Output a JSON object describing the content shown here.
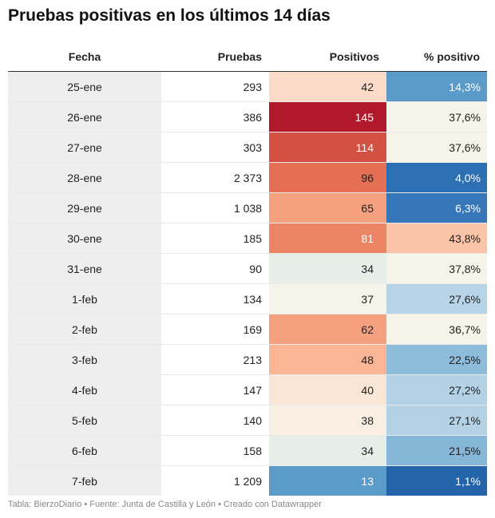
{
  "title": "Pruebas positivas en los últimos 14 días",
  "footer": "Tabla: BierzoDiario • Fuente: Junta de Castilla y León • Creado con Datawrapper",
  "chart_data": {
    "type": "table",
    "columns": [
      "Fecha",
      "Pruebas",
      "Positivos",
      "% positivo"
    ],
    "rows": [
      {
        "fecha": "25-ene",
        "pruebas": "293",
        "positivos": "42",
        "pct": "14,3%",
        "pos_bg": "#fcdcc9",
        "pos_fg": "#222222",
        "pct_bg": "#5a9bc9",
        "pct_fg": "#ffffff"
      },
      {
        "fecha": "26-ene",
        "pruebas": "386",
        "positivos": "145",
        "pct": "37,6%",
        "pos_bg": "#b2182b",
        "pos_fg": "#ffffff",
        "pct_bg": "#f6f3e8",
        "pct_fg": "#222222"
      },
      {
        "fecha": "27-ene",
        "pruebas": "303",
        "positivos": "114",
        "pct": "37,6%",
        "pos_bg": "#d35142",
        "pos_fg": "#ffffff",
        "pct_bg": "#f6f3e8",
        "pct_fg": "#222222"
      },
      {
        "fecha": "28-ene",
        "pruebas": "2 373",
        "positivos": "96",
        "pct": "4,0%",
        "pos_bg": "#e46f53",
        "pos_fg": "#222222",
        "pct_bg": "#2c6fb2",
        "pct_fg": "#ffffff"
      },
      {
        "fecha": "29-ene",
        "pruebas": "1 038",
        "positivos": "65",
        "pct": "6,3%",
        "pos_bg": "#f5a07e",
        "pos_fg": "#222222",
        "pct_bg": "#3577b8",
        "pct_fg": "#ffffff"
      },
      {
        "fecha": "30-ene",
        "pruebas": "185",
        "positivos": "81",
        "pct": "43,8%",
        "pos_bg": "#ec8563",
        "pos_fg": "#ffffff",
        "pct_bg": "#fbc4a8",
        "pct_fg": "#222222"
      },
      {
        "fecha": "31-ene",
        "pruebas": "90",
        "positivos": "34",
        "pct": "37,8%",
        "pos_bg": "#e6eeea",
        "pos_fg": "#222222",
        "pct_bg": "#f6f3e8",
        "pct_fg": "#222222"
      },
      {
        "fecha": "1-feb",
        "pruebas": "134",
        "positivos": "37",
        "pct": "27,6%",
        "pos_bg": "#f6f3e8",
        "pos_fg": "#222222",
        "pct_bg": "#b8d5e8",
        "pct_fg": "#222222"
      },
      {
        "fecha": "2-feb",
        "pruebas": "169",
        "positivos": "62",
        "pct": "36,7%",
        "pos_bg": "#f5a07e",
        "pos_fg": "#222222",
        "pct_bg": "#f6f3e8",
        "pct_fg": "#222222"
      },
      {
        "fecha": "3-feb",
        "pruebas": "213",
        "positivos": "48",
        "pct": "22,5%",
        "pos_bg": "#f9b595",
        "pos_fg": "#222222",
        "pct_bg": "#8ebcdb",
        "pct_fg": "#222222"
      },
      {
        "fecha": "4-feb",
        "pruebas": "147",
        "positivos": "40",
        "pct": "27,2%",
        "pos_bg": "#fae6d6",
        "pos_fg": "#222222",
        "pct_bg": "#b3d2e6",
        "pct_fg": "#222222"
      },
      {
        "fecha": "5-feb",
        "pruebas": "140",
        "positivos": "38",
        "pct": "27,1%",
        "pos_bg": "#f8efe2",
        "pos_fg": "#222222",
        "pct_bg": "#b3d2e6",
        "pct_fg": "#222222"
      },
      {
        "fecha": "6-feb",
        "pruebas": "158",
        "positivos": "34",
        "pct": "21,5%",
        "pos_bg": "#e6eeea",
        "pos_fg": "#222222",
        "pct_bg": "#86b7d8",
        "pct_fg": "#222222"
      },
      {
        "fecha": "7-feb",
        "pruebas": "1 209",
        "positivos": "13",
        "pct": "1,1%",
        "pos_bg": "#5a9bc9",
        "pos_fg": "#ffffff",
        "pct_bg": "#2364ab",
        "pct_fg": "#ffffff"
      }
    ]
  }
}
